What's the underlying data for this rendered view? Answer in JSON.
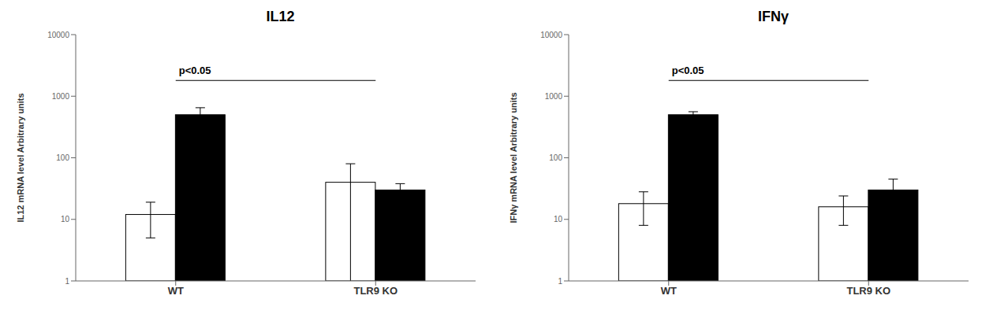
{
  "chart_data": [
    {
      "type": "bar",
      "title": "IL12",
      "y_label": "IL12 mRNA level Arbitrary units",
      "categories": [
        "WT",
        "TLR9 KO"
      ],
      "series": [
        {
          "color": "white",
          "values": [
            12,
            40
          ],
          "errors": [
            7,
            40
          ]
        },
        {
          "color": "black",
          "values": [
            500,
            30
          ],
          "errors": [
            150,
            8
          ]
        }
      ],
      "log": "y",
      "ylim": [
        1,
        10000
      ],
      "yticks": [
        1,
        10,
        100,
        1000,
        10000
      ],
      "grid": false,
      "annotations": [
        {
          "text": "p<0.05",
          "y": 1800
        }
      ]
    },
    {
      "type": "bar",
      "title": "IFNγ",
      "y_label": "IFNγ mRNA level Arbitrary units",
      "categories": [
        "WT",
        "TLR9 KO"
      ],
      "series": [
        {
          "color": "white",
          "values": [
            18,
            16
          ],
          "errors": [
            10,
            8
          ]
        },
        {
          "color": "black",
          "values": [
            500,
            30
          ],
          "errors": [
            60,
            15
          ]
        }
      ],
      "log": "y",
      "ylim": [
        1,
        10000
      ],
      "yticks": [
        1,
        10,
        100,
        1000,
        10000
      ],
      "grid": false,
      "annotations": [
        {
          "text": "p<0.05",
          "y": 1800
        }
      ]
    }
  ]
}
